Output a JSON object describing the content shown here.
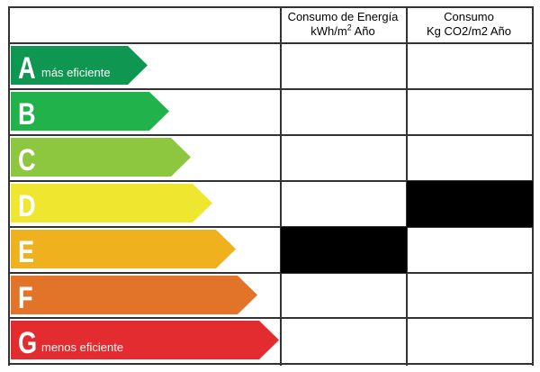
{
  "header": {
    "energy": {
      "line1": "Consumo de Energía",
      "line2_pre": "kWh/m",
      "line2_sup": "2",
      "line2_post": " Año"
    },
    "co2": {
      "line1": "Consumo",
      "line2": "Kg CO2/m2 Año"
    }
  },
  "bands": [
    {
      "letter": "A",
      "label": "más eficiente",
      "color": "#0f9650",
      "length": 0.51
    },
    {
      "letter": "B",
      "label": "",
      "color": "#21b24b",
      "length": 0.59
    },
    {
      "letter": "C",
      "label": "",
      "color": "#8dc63f",
      "length": 0.67
    },
    {
      "letter": "D",
      "label": "",
      "color": "#efe62f",
      "length": 0.75
    },
    {
      "letter": "E",
      "label": "",
      "color": "#f0b11e",
      "length": 0.84
    },
    {
      "letter": "F",
      "label": "",
      "color": "#e2742a",
      "length": 0.92
    },
    {
      "letter": "G",
      "label": "menos eficiente",
      "color": "#e22c2f",
      "length": 1.0
    }
  ],
  "rating": {
    "energy": "E",
    "co2": "D"
  },
  "colors": {
    "marker": "#000000",
    "grid": "#333333"
  }
}
